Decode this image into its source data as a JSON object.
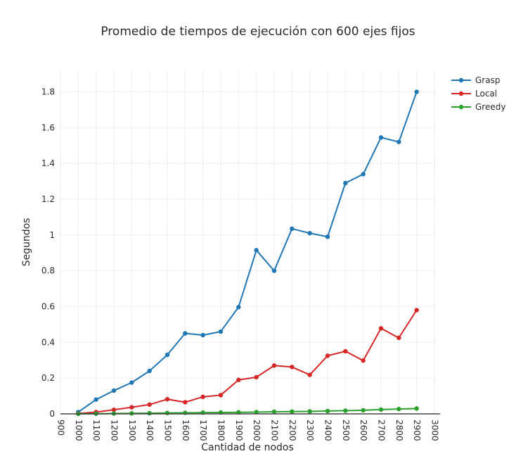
{
  "chart_data": {
    "type": "line",
    "title": "Promedio de tiempos de ejecución con 600 ejes fijos",
    "xlabel": "Cantidad de nodos",
    "ylabel": "Segundos",
    "xlim": [
      900,
      3000
    ],
    "ylim": [
      0,
      1.92
    ],
    "x_ticks": [
      900,
      1000,
      1100,
      1200,
      1300,
      1400,
      1500,
      1600,
      1700,
      1800,
      1900,
      2000,
      2100,
      2200,
      2300,
      2400,
      2500,
      2600,
      2700,
      2800,
      2900,
      3000
    ],
    "y_ticks": [
      0,
      0.2,
      0.4,
      0.6,
      0.8,
      1,
      1.2,
      1.4,
      1.6,
      1.8
    ],
    "y_tick_labels": [
      "0",
      "0.2",
      "0.4",
      "0.6",
      "0.8",
      "1",
      "1.2",
      "1.4",
      "1.6",
      "1.8"
    ],
    "grid": true,
    "legend_position": "top-right",
    "x": [
      1000,
      1100,
      1200,
      1300,
      1400,
      1500,
      1600,
      1700,
      1800,
      1900,
      2000,
      2100,
      2200,
      2300,
      2400,
      2500,
      2600,
      2700,
      2800,
      2900
    ],
    "series": [
      {
        "name": "Grasp",
        "color": "#1f77b4",
        "values": [
          0.01,
          0.08,
          0.13,
          0.175,
          0.24,
          0.33,
          0.45,
          0.44,
          0.46,
          0.597,
          0.915,
          0.8,
          1.035,
          1.01,
          0.99,
          1.29,
          1.34,
          1.545,
          1.52,
          1.8
        ]
      },
      {
        "name": "Local",
        "color": "#d62728",
        "values": [
          0.002,
          0.01,
          0.023,
          0.037,
          0.052,
          0.082,
          0.065,
          0.095,
          0.105,
          0.19,
          0.205,
          0.27,
          0.262,
          0.218,
          0.325,
          0.35,
          0.298,
          0.478,
          0.425,
          0.58
        ]
      },
      {
        "name": "Greedy",
        "color": "#2ca02c",
        "values": [
          0.0,
          0.001,
          0.002,
          0.003,
          0.004,
          0.005,
          0.006,
          0.007,
          0.008,
          0.009,
          0.01,
          0.012,
          0.013,
          0.014,
          0.016,
          0.018,
          0.02,
          0.024,
          0.027,
          0.03
        ]
      }
    ]
  }
}
